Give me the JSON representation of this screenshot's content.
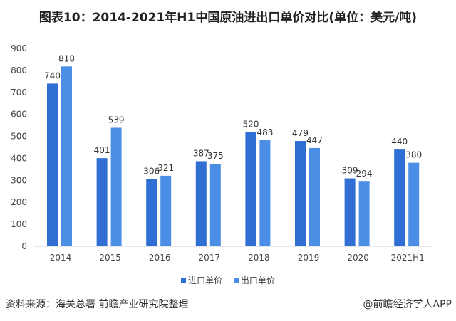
{
  "chart_data": {
    "type": "bar",
    "title": "图表10：2014-2021年H1中国原油进出口单价对比(单位：美元/吨)",
    "categories": [
      "2014",
      "2015",
      "2016",
      "2017",
      "2018",
      "2019",
      "2020",
      "2021H1"
    ],
    "series": [
      {
        "name": "进口单价",
        "values": [
          740,
          401,
          306,
          387,
          520,
          479,
          309,
          440
        ],
        "color": "#2f6fd3"
      },
      {
        "name": "出口单价",
        "values": [
          818,
          539,
          321,
          375,
          483,
          447,
          294,
          380
        ],
        "color": "#4b8ee6"
      }
    ],
    "yticks": [
      0,
      100,
      200,
      300,
      400,
      500,
      600,
      700,
      800,
      900
    ],
    "ylim": [
      0,
      900
    ],
    "grid": false,
    "legend": "bottom"
  },
  "footer": {
    "source": "资料来源：海关总署 前瞻产业研究院整理",
    "credit": "@前瞻经济学人APP"
  }
}
